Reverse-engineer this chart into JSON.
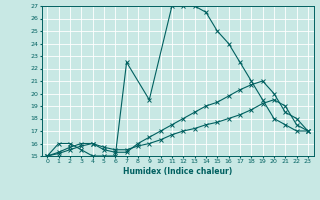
{
  "xlabel": "Humidex (Indice chaleur)",
  "ylabel": "",
  "xlim": [
    -0.5,
    23.5
  ],
  "ylim": [
    15,
    27
  ],
  "yticks": [
    15,
    16,
    17,
    18,
    19,
    20,
    21,
    22,
    23,
    24,
    25,
    26,
    27
  ],
  "xticks": [
    0,
    1,
    2,
    3,
    4,
    5,
    6,
    7,
    8,
    9,
    10,
    11,
    12,
    13,
    14,
    15,
    16,
    17,
    18,
    19,
    20,
    21,
    22,
    23
  ],
  "background_color": "#c8e8e4",
  "line_color": "#006060",
  "grid_color": "#ffffff",
  "line1_x": [
    0,
    1,
    2,
    3,
    4,
    5,
    6,
    7,
    9,
    11,
    12,
    13,
    14,
    15,
    16,
    17,
    18,
    19,
    20,
    21,
    22,
    23
  ],
  "line1_y": [
    15,
    16,
    16,
    15.5,
    15,
    15,
    15,
    22.5,
    19.5,
    27,
    27,
    27,
    26.5,
    25,
    24,
    22.5,
    21,
    19.5,
    18,
    17.5,
    17,
    17
  ],
  "line2_x": [
    0,
    1,
    2,
    3,
    4,
    5,
    6,
    7,
    8,
    9,
    10,
    11,
    12,
    13,
    14,
    15,
    16,
    17,
    18,
    19,
    20,
    21,
    22,
    23
  ],
  "line2_y": [
    15,
    15.3,
    15.7,
    16,
    16,
    15.5,
    15.3,
    15.3,
    16,
    16.5,
    17,
    17.5,
    18,
    18.5,
    19,
    19.3,
    19.8,
    20.3,
    20.7,
    21,
    20,
    18.5,
    18,
    17
  ],
  "line3_x": [
    0,
    1,
    2,
    3,
    4,
    5,
    6,
    7,
    8,
    9,
    10,
    11,
    12,
    13,
    14,
    15,
    16,
    17,
    18,
    19,
    20,
    21,
    22,
    23
  ],
  "line3_y": [
    15,
    15.2,
    15.5,
    15.8,
    16,
    15.7,
    15.5,
    15.5,
    15.8,
    16,
    16.3,
    16.7,
    17,
    17.2,
    17.5,
    17.7,
    18,
    18.3,
    18.7,
    19.2,
    19.5,
    19,
    17.5,
    17
  ]
}
